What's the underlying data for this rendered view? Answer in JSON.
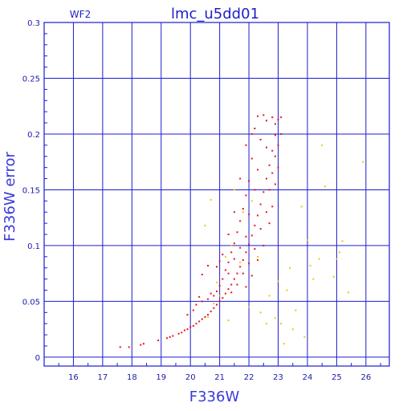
{
  "chart_data": {
    "type": "scatter",
    "title": "lmc_u5dd01",
    "subtitle": "WF2",
    "xlabel": "F336W",
    "ylabel": "F336W error",
    "xlim": [
      15.0,
      26.8
    ],
    "ylim": [
      -0.008,
      0.3
    ],
    "xticks": [
      16,
      17,
      18,
      19,
      20,
      21,
      22,
      23,
      24,
      25,
      26
    ],
    "yticks": [
      0,
      0.05,
      0.1,
      0.15,
      0.2,
      0.25,
      0.3
    ],
    "ytick_labels": [
      "0",
      "0.05",
      "0.1",
      "0.15",
      "0.2",
      "0.25",
      "0.3"
    ],
    "grid": true,
    "colors": {
      "frame": "#1c1cd0",
      "grid": "#1c1cd0",
      "main_series": "#e8141c",
      "secondary_series": "#f0c800"
    },
    "series": [
      {
        "color": "#e8141c",
        "points": [
          [
            17.6,
            0.009
          ],
          [
            17.9,
            0.009
          ],
          [
            18.3,
            0.011
          ],
          [
            18.4,
            0.012
          ],
          [
            18.9,
            0.015
          ],
          [
            19.2,
            0.017
          ],
          [
            19.3,
            0.018
          ],
          [
            19.4,
            0.019
          ],
          [
            19.6,
            0.021
          ],
          [
            19.7,
            0.022
          ],
          [
            19.8,
            0.024
          ],
          [
            19.9,
            0.025
          ],
          [
            20.0,
            0.027
          ],
          [
            20.1,
            0.028
          ],
          [
            20.2,
            0.03
          ],
          [
            20.3,
            0.032
          ],
          [
            20.4,
            0.034
          ],
          [
            20.5,
            0.036
          ],
          [
            20.6,
            0.038
          ],
          [
            20.7,
            0.041
          ],
          [
            20.8,
            0.044
          ],
          [
            20.9,
            0.047
          ],
          [
            21.0,
            0.05
          ],
          [
            21.1,
            0.053
          ],
          [
            21.2,
            0.057
          ],
          [
            21.3,
            0.061
          ],
          [
            21.4,
            0.065
          ],
          [
            21.5,
            0.07
          ],
          [
            21.6,
            0.075
          ],
          [
            21.7,
            0.081
          ],
          [
            21.8,
            0.087
          ],
          [
            21.9,
            0.094
          ],
          [
            22.0,
            0.101
          ],
          [
            22.1,
            0.109
          ],
          [
            22.2,
            0.118
          ],
          [
            22.3,
            0.127
          ],
          [
            22.4,
            0.137
          ],
          [
            22.5,
            0.148
          ],
          [
            22.6,
            0.16
          ],
          [
            22.7,
            0.172
          ],
          [
            22.8,
            0.185
          ],
          [
            22.9,
            0.199
          ],
          [
            23.0,
            0.213
          ],
          [
            22.8,
            0.215
          ],
          [
            22.5,
            0.217
          ],
          [
            22.3,
            0.216
          ],
          [
            22.6,
            0.212
          ],
          [
            22.9,
            0.209
          ],
          [
            22.2,
            0.205
          ],
          [
            22.4,
            0.195
          ],
          [
            22.6,
            0.188
          ],
          [
            22.1,
            0.178
          ],
          [
            22.3,
            0.168
          ],
          [
            22.0,
            0.158
          ],
          [
            21.9,
            0.145
          ],
          [
            22.2,
            0.15
          ],
          [
            21.8,
            0.133
          ],
          [
            21.7,
            0.122
          ],
          [
            22.0,
            0.128
          ],
          [
            21.6,
            0.112
          ],
          [
            21.5,
            0.102
          ],
          [
            21.9,
            0.108
          ],
          [
            21.4,
            0.094
          ],
          [
            21.3,
            0.085
          ],
          [
            21.7,
            0.098
          ],
          [
            21.2,
            0.078
          ],
          [
            21.1,
            0.07
          ],
          [
            21.5,
            0.088
          ],
          [
            21.0,
            0.064
          ],
          [
            20.9,
            0.059
          ],
          [
            21.3,
            0.075
          ],
          [
            20.8,
            0.055
          ],
          [
            20.6,
            0.052
          ],
          [
            20.4,
            0.05
          ],
          [
            20.2,
            0.047
          ],
          [
            20.7,
            0.057
          ],
          [
            20.1,
            0.042
          ],
          [
            19.9,
            0.038
          ],
          [
            21.1,
            0.092
          ],
          [
            21.0,
            0.086
          ],
          [
            20.9,
            0.081
          ],
          [
            20.6,
            0.082
          ],
          [
            20.4,
            0.074
          ],
          [
            20.3,
            0.054
          ],
          [
            22.3,
            0.087
          ],
          [
            22.5,
            0.1
          ],
          [
            22.7,
            0.12
          ],
          [
            22.8,
            0.135
          ],
          [
            22.9,
            0.155
          ],
          [
            23.0,
            0.17
          ],
          [
            23.0,
            0.19
          ],
          [
            23.1,
            0.2
          ],
          [
            22.7,
            0.15
          ],
          [
            22.6,
            0.13
          ],
          [
            22.4,
            0.115
          ],
          [
            22.2,
            0.097
          ],
          [
            22.0,
            0.084
          ],
          [
            21.8,
            0.075
          ],
          [
            21.6,
            0.065
          ],
          [
            21.4,
            0.058
          ],
          [
            21.9,
            0.063
          ],
          [
            22.1,
            0.073
          ],
          [
            21.3,
            0.11
          ],
          [
            21.5,
            0.13
          ],
          [
            21.7,
            0.16
          ],
          [
            21.9,
            0.19
          ],
          [
            22.1,
            0.2
          ],
          [
            23.1,
            0.215
          ],
          [
            22.9,
            0.18
          ],
          [
            22.8,
            0.165
          ]
        ]
      },
      {
        "color": "#f0c800",
        "points": [
          [
            20.5,
            0.118
          ],
          [
            20.7,
            0.141
          ],
          [
            21.2,
            0.09
          ],
          [
            20.9,
            0.067
          ],
          [
            21.5,
            0.15
          ],
          [
            21.8,
            0.13
          ],
          [
            22.1,
            0.14
          ],
          [
            22.3,
            0.09
          ],
          [
            21.4,
            0.1
          ],
          [
            21.7,
            0.085
          ],
          [
            20.8,
            0.048
          ],
          [
            21.0,
            0.055
          ],
          [
            22.0,
            0.045
          ],
          [
            22.4,
            0.04
          ],
          [
            22.9,
            0.035
          ],
          [
            23.1,
            0.03
          ],
          [
            23.3,
            0.06
          ],
          [
            23.4,
            0.08
          ],
          [
            23.6,
            0.042
          ],
          [
            23.8,
            0.135
          ],
          [
            24.0,
            0.105
          ],
          [
            24.1,
            0.082
          ],
          [
            24.2,
            0.07
          ],
          [
            24.4,
            0.088
          ],
          [
            24.6,
            0.153
          ],
          [
            24.5,
            0.19
          ],
          [
            24.9,
            0.072
          ],
          [
            25.0,
            0.088
          ],
          [
            25.1,
            0.094
          ],
          [
            25.2,
            0.104
          ],
          [
            25.4,
            0.058
          ],
          [
            25.9,
            0.175
          ],
          [
            23.2,
            0.012
          ],
          [
            23.5,
            0.025
          ],
          [
            23.9,
            0.018
          ],
          [
            22.6,
            0.03
          ],
          [
            23.0,
            0.068
          ],
          [
            22.7,
            0.055
          ],
          [
            21.3,
            0.033
          ],
          [
            20.6,
            0.036
          ]
        ]
      }
    ]
  }
}
